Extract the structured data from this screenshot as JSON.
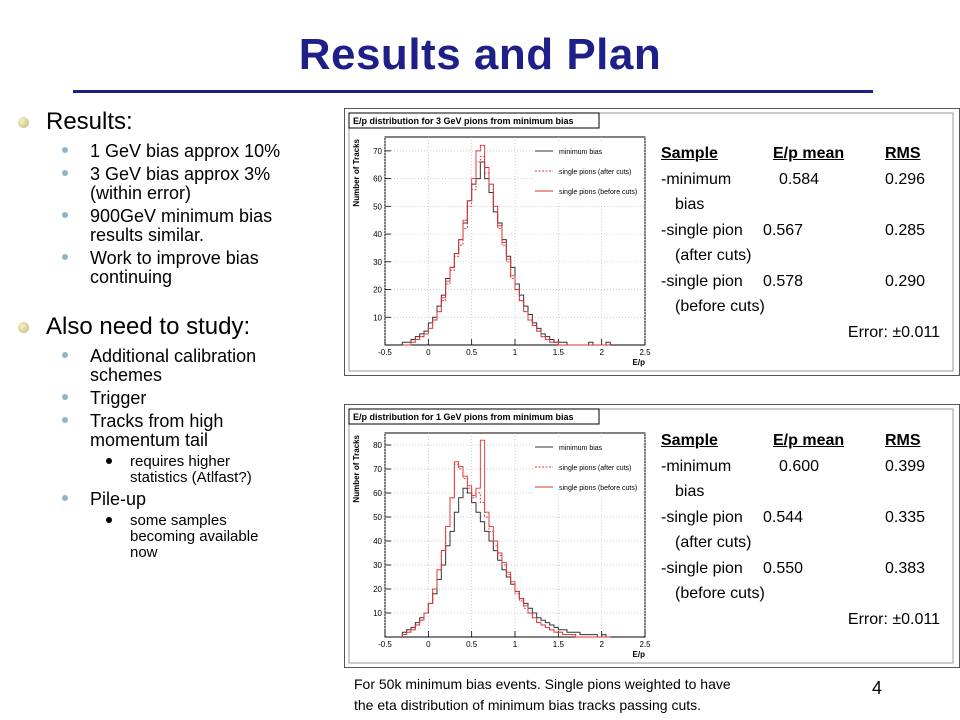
{
  "slide": {
    "title": "Results and Plan",
    "page_number": "4",
    "caption_line1": "For 50k minimum bias events. Single pions weighted to have",
    "caption_line2": "the eta distribution of minimum bias tracks passing cuts."
  },
  "bullets": {
    "results": "Results:",
    "r1": "1 GeV bias approx 10%",
    "r2a": "3 GeV bias approx 3%",
    "r2b": "(within error)",
    "r3a": "900GeV minimum bias",
    "r3b": "results similar.",
    "r4a": "Work to improve bias",
    "r4b": "continuing",
    "study": "Also need to study:",
    "s1a": "Additional calibration",
    "s1b": "schemes",
    "s2": "Trigger",
    "s3a": "Tracks from high",
    "s3b": "momentum tail",
    "s3s1a": "requires higher",
    "s3s1b": "statistics (Atlfast?)",
    "s4": "Pile-up",
    "s4s1a": "some samples",
    "s4s1b": "becoming available",
    "s4s1c": "now"
  },
  "colors": {
    "title": "#1f1f8a",
    "series_minbias": "#333333",
    "series_single": "#e03030"
  },
  "chart_data": [
    {
      "type": "line",
      "title": "E/p distribution for 3 GeV pions from minimum bias",
      "xlabel": "E/p",
      "ylabel": "Number of Tracks",
      "xlim": [
        -0.5,
        2.5
      ],
      "ylim": [
        0,
        75
      ],
      "xticks": [
        "-0.5",
        "0",
        "0.5",
        "1",
        "1.5",
        "2",
        "2.5"
      ],
      "yticks": [
        "10",
        "20",
        "30",
        "40",
        "50",
        "60",
        "70"
      ],
      "legend": [
        "minimum bias",
        "single pions (after cuts)",
        "single pions (before cuts)"
      ],
      "legend_position": "top-right",
      "bin_start": -0.3,
      "bin_width": 0.05,
      "series": [
        {
          "name": "minimum bias",
          "style": "solid",
          "values": [
            1,
            1,
            2,
            3,
            4,
            5,
            8,
            10,
            14,
            18,
            24,
            28,
            33,
            38,
            44,
            52,
            58,
            60,
            66,
            60,
            55,
            48,
            44,
            38,
            32,
            28,
            22,
            18,
            14,
            11,
            8,
            6,
            4,
            3,
            2,
            1,
            1,
            1,
            0,
            0,
            0,
            0,
            0,
            1,
            0,
            0,
            0,
            1
          ]
        },
        {
          "name": "single pions (after cuts)",
          "style": "dashed",
          "values": [
            0,
            0,
            1,
            2,
            3,
            4,
            6,
            9,
            12,
            16,
            22,
            27,
            32,
            36,
            42,
            50,
            56,
            66,
            68,
            62,
            58,
            50,
            42,
            36,
            30,
            24,
            20,
            16,
            12,
            9,
            7,
            5,
            3,
            2,
            1,
            1,
            0,
            0,
            0,
            0,
            0,
            0,
            0,
            0,
            0,
            0,
            0,
            0
          ]
        },
        {
          "name": "single pions (before cuts)",
          "style": "solid",
          "values": [
            0,
            0,
            1,
            2,
            3,
            4,
            6,
            9,
            12,
            17,
            23,
            28,
            33,
            38,
            45,
            52,
            60,
            70,
            72,
            64,
            58,
            50,
            43,
            37,
            31,
            25,
            20,
            16,
            12,
            9,
            7,
            5,
            3,
            2,
            1,
            1,
            0,
            0,
            0,
            0,
            0,
            0,
            0,
            0,
            0,
            0,
            0,
            0
          ]
        }
      ]
    },
    {
      "type": "line",
      "title": "E/p distribution for 1 GeV pions from minimum bias",
      "xlabel": "E/p",
      "ylabel": "Number of Tracks",
      "xlim": [
        -0.5,
        2.5
      ],
      "ylim": [
        0,
        85
      ],
      "xticks": [
        "-0.5",
        "0",
        "0.5",
        "1",
        "1.5",
        "2",
        "2.5"
      ],
      "yticks": [
        "10",
        "20",
        "30",
        "40",
        "50",
        "60",
        "70",
        "80"
      ],
      "legend": [
        "minimum bias",
        "single pions (after cuts)",
        "single pions (before cuts)"
      ],
      "legend_position": "top-right",
      "bin_start": -0.3,
      "bin_width": 0.05,
      "series": [
        {
          "name": "minimum bias",
          "style": "solid",
          "values": [
            2,
            3,
            4,
            6,
            8,
            10,
            14,
            18,
            24,
            30,
            38,
            44,
            52,
            58,
            62,
            60,
            56,
            52,
            48,
            44,
            40,
            36,
            32,
            28,
            25,
            22,
            19,
            16,
            14,
            12,
            10,
            8,
            7,
            6,
            5,
            4,
            3,
            3,
            2,
            2,
            2,
            1,
            1,
            1,
            1,
            0,
            1,
            0
          ]
        },
        {
          "name": "single pions (after cuts)",
          "style": "dashed",
          "values": [
            1,
            2,
            3,
            5,
            7,
            10,
            14,
            20,
            28,
            36,
            46,
            58,
            72,
            70,
            66,
            62,
            58,
            60,
            56,
            50,
            44,
            38,
            34,
            30,
            26,
            22,
            18,
            15,
            12,
            10,
            8,
            6,
            5,
            4,
            3,
            2,
            2,
            1,
            1,
            1,
            0,
            0,
            0,
            0,
            0,
            0,
            0,
            0
          ]
        },
        {
          "name": "single pions (before cuts)",
          "style": "solid",
          "values": [
            1,
            2,
            3,
            5,
            7,
            10,
            14,
            20,
            28,
            36,
            46,
            58,
            73,
            71,
            67,
            63,
            59,
            62,
            82,
            52,
            46,
            40,
            35,
            31,
            27,
            23,
            19,
            16,
            13,
            10,
            8,
            6,
            5,
            4,
            3,
            2,
            2,
            1,
            1,
            1,
            0,
            0,
            0,
            0,
            0,
            0,
            0,
            0
          ]
        }
      ]
    }
  ],
  "stats_top": {
    "h1": "Sample",
    "h2": "E/p mean",
    "h3": "RMS",
    "r1c1": "-minimum",
    "r1c2": "0.584",
    "r1c3": "0.296",
    "r1b": "bias",
    "r2c1": "-single pion",
    "r2c2": "0.567",
    "r2c3": "0.285",
    "r2b": "(after cuts)",
    "r3c1": "-single pion",
    "r3c2": "0.578",
    "r3c3": "0.290",
    "r3b": "(before cuts)",
    "error": "Error: ±0.011"
  },
  "stats_bot": {
    "h1": "Sample",
    "h2": "E/p mean",
    "h3": "RMS",
    "r1c1": "-minimum",
    "r1c2": "0.600",
    "r1c3": "0.399",
    "r1b": "bias",
    "r2c1": "-single pion",
    "r2c2": "0.544",
    "r2c3": "0.335",
    "r2b": "(after cuts)",
    "r3c1": "-single pion",
    "r3c2": "0.550",
    "r3c3": "0.383",
    "r3b": "(before cuts)",
    "error": "Error: ±0.011"
  }
}
